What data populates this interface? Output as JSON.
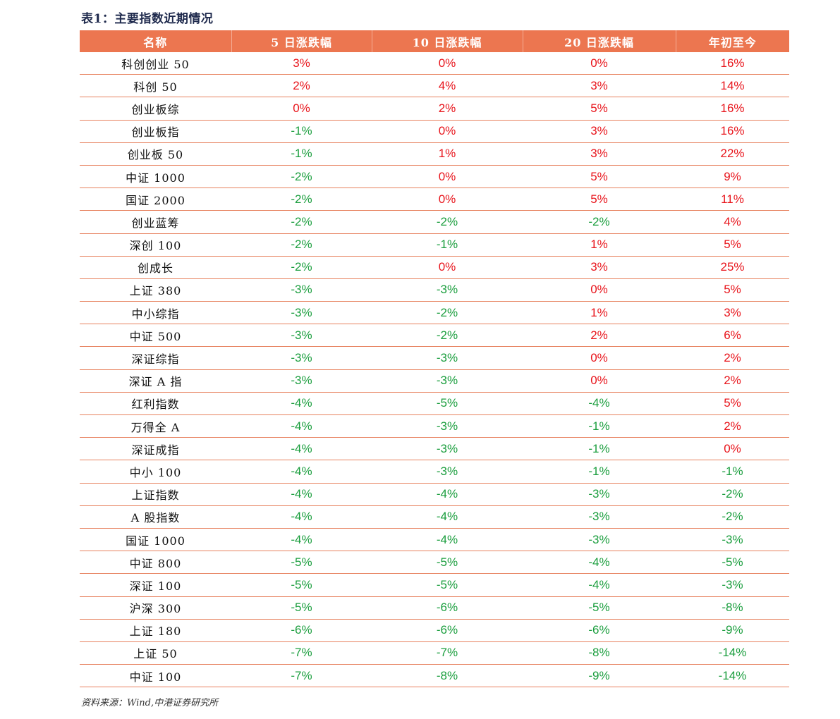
{
  "title": "表1：主要指数近期情况",
  "columns": [
    "名称",
    "5 日涨跌幅",
    "10 日涨跌幅",
    "20 日涨跌幅",
    "年初至今"
  ],
  "colors": {
    "header_bg": "#ec7650",
    "positive": "#e8141b",
    "negative": "#1b9e3e",
    "row_line": "#e7815e"
  },
  "rows": [
    [
      "科创创业 50",
      "3%",
      "0%",
      "0%",
      "16%"
    ],
    [
      "科创 50",
      "2%",
      "4%",
      "3%",
      "14%"
    ],
    [
      "创业板综",
      "0%",
      "2%",
      "5%",
      "16%"
    ],
    [
      "创业板指",
      "-1%",
      "0%",
      "3%",
      "16%"
    ],
    [
      "创业板 50",
      "-1%",
      "1%",
      "3%",
      "22%"
    ],
    [
      "中证 1000",
      "-2%",
      "0%",
      "5%",
      "9%"
    ],
    [
      "国证 2000",
      "-2%",
      "0%",
      "5%",
      "11%"
    ],
    [
      "创业蓝筹",
      "-2%",
      "-2%",
      "-2%",
      "4%"
    ],
    [
      "深创 100",
      "-2%",
      "-1%",
      "1%",
      "5%"
    ],
    [
      "创成长",
      "-2%",
      "0%",
      "3%",
      "25%"
    ],
    [
      "上证 380",
      "-3%",
      "-3%",
      "0%",
      "5%"
    ],
    [
      "中小综指",
      "-3%",
      "-2%",
      "1%",
      "3%"
    ],
    [
      "中证 500",
      "-3%",
      "-2%",
      "2%",
      "6%"
    ],
    [
      "深证综指",
      "-3%",
      "-3%",
      "0%",
      "2%"
    ],
    [
      "深证 A 指",
      "-3%",
      "-3%",
      "0%",
      "2%"
    ],
    [
      "红利指数",
      "-4%",
      "-5%",
      "-4%",
      "5%"
    ],
    [
      "万得全 A",
      "-4%",
      "-3%",
      "-1%",
      "2%"
    ],
    [
      "深证成指",
      "-4%",
      "-3%",
      "-1%",
      "0%"
    ],
    [
      "中小 100",
      "-4%",
      "-3%",
      "-1%",
      "-1%"
    ],
    [
      "上证指数",
      "-4%",
      "-4%",
      "-3%",
      "-2%"
    ],
    [
      "A 股指数",
      "-4%",
      "-4%",
      "-3%",
      "-2%"
    ],
    [
      "国证 1000",
      "-4%",
      "-4%",
      "-3%",
      "-3%"
    ],
    [
      "中证 800",
      "-5%",
      "-5%",
      "-4%",
      "-5%"
    ],
    [
      "深证 100",
      "-5%",
      "-5%",
      "-4%",
      "-3%"
    ],
    [
      "沪深 300",
      "-5%",
      "-6%",
      "-5%",
      "-8%"
    ],
    [
      "上证 180",
      "-6%",
      "-6%",
      "-6%",
      "-9%"
    ],
    [
      "上证 50",
      "-7%",
      "-7%",
      "-8%",
      "-14%"
    ],
    [
      "中证 100",
      "-7%",
      "-8%",
      "-9%",
      "-14%"
    ]
  ],
  "source": "资料来源：Wind,中港证券研究所"
}
